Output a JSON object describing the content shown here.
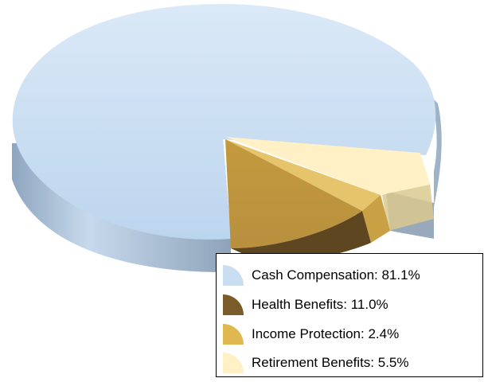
{
  "chart_data": {
    "type": "pie",
    "title": "",
    "style": "3d-exploded",
    "legend_position": "bottom-right",
    "slices": [
      {
        "label": "Cash Compensation: 81.1%",
        "value": 81.1,
        "color": "#c9def2",
        "side_color": "#9fb5cc"
      },
      {
        "label": "Health Benefits: 11.0%",
        "value": 11.0,
        "color": "#b08a3a",
        "side_color": "#5e4620"
      },
      {
        "label": "Income Protection: 2.4%",
        "value": 2.4,
        "color": "#e6c36a",
        "side_color": "#c79e3c"
      },
      {
        "label": "Retirement Benefits: 5.5%",
        "value": 5.5,
        "color": "#fff1c8",
        "side_color": "#d8c68e"
      }
    ]
  }
}
